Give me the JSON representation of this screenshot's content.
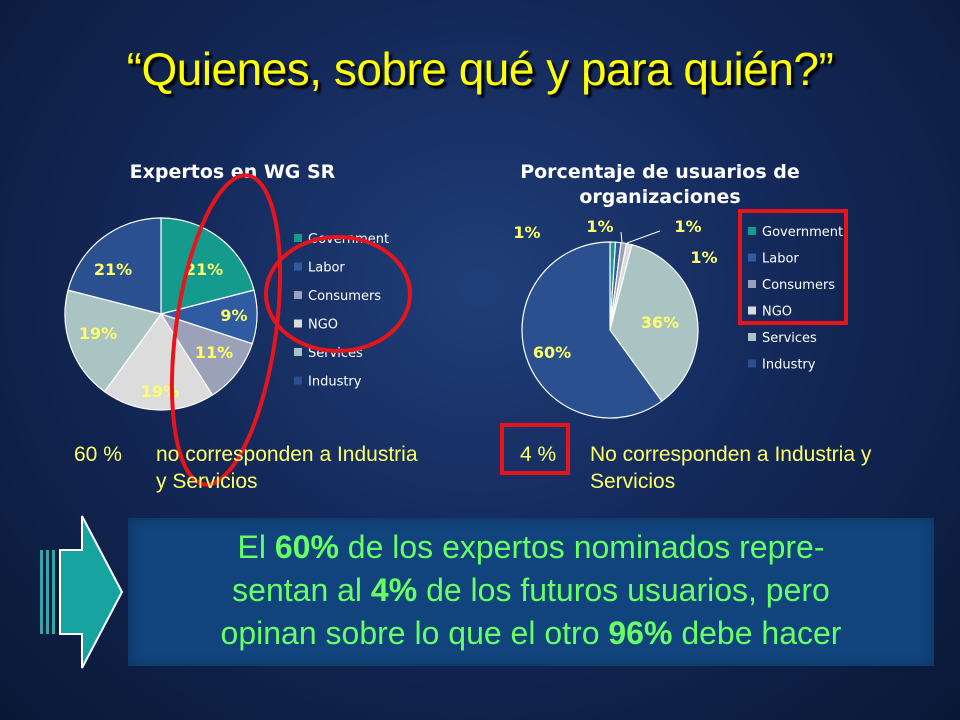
{
  "slide": {
    "title": "“Quienes, sobre qué y para quién?”"
  },
  "colors": {
    "title": "#ffff00",
    "label": "#ffff66",
    "legend_text": "#ffffff",
    "box_bg": "#11437c",
    "summary_text": "#66ff66",
    "annotation": "#e8141c"
  },
  "chart_data": [
    {
      "type": "pie",
      "title": "Expertos en WG SR",
      "categories": [
        "Government",
        "Labor",
        "Consumers",
        "NGO",
        "Services",
        "Industry"
      ],
      "values": [
        21,
        9,
        11,
        19,
        19,
        21
      ],
      "labels": [
        "21%",
        "9%",
        "11%",
        "19%",
        "19%",
        "21%"
      ],
      "colors": [
        "#159a8e",
        "#2f5ba3",
        "#9aa1b8",
        "#dcdcdc",
        "#a9c4c3",
        "#2a5090"
      ],
      "legend_position": "right"
    },
    {
      "type": "pie",
      "title": "Porcentaje de usuarios de organizaciones",
      "categories": [
        "Government",
        "Labor",
        "Consumers",
        "NGO",
        "Services",
        "Industry"
      ],
      "values": [
        1,
        1,
        1,
        1,
        36,
        60
      ],
      "labels": [
        "1%",
        "1%",
        "1%",
        "1%",
        "36%",
        "60%"
      ],
      "colors": [
        "#159a8e",
        "#2f5ba3",
        "#9aa1b8",
        "#dcdcdc",
        "#a9c4c3",
        "#2a5090"
      ],
      "legend_position": "right"
    }
  ],
  "captions": {
    "left_pct": "60 %",
    "left_line1": "no corresponden a Industria",
    "left_line2": "y Servicios",
    "right_pct": "4 %",
    "right_line1": "No corresponden a Industria y",
    "right_line2": "Servicios"
  },
  "summary": {
    "line1_pre": "El ",
    "line1_b": "60%",
    "line1_post": " de los expertos nominados repre-",
    "line2_pre": "sentan al ",
    "line2_b": "4%",
    "line2_post": " de los futuros usuarios, pero",
    "line3_pre": "opinan sobre lo que el otro ",
    "line3_b": "96%",
    "line3_post": " debe hacer"
  },
  "icons": {
    "arrow": "arrow-right-icon"
  }
}
